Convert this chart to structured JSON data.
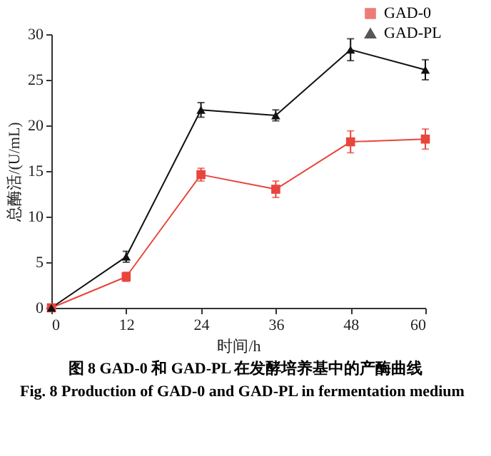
{
  "chart_data": {
    "type": "line",
    "xlabel": "时间/h",
    "ylabel": "总酶活/(U/mL)",
    "x": [
      0,
      12,
      24,
      36,
      48,
      60
    ],
    "xlim": [
      0,
      60
    ],
    "xticks": [
      0,
      12,
      24,
      36,
      48,
      60
    ],
    "ylim": [
      0,
      30
    ],
    "yticks": [
      0,
      5,
      10,
      15,
      20,
      25,
      30
    ],
    "grid": false,
    "legend": "top right",
    "series": [
      {
        "name": "GAD-0",
        "color": "#e8453c",
        "marker": "square",
        "values": [
          0,
          3.4,
          14.6,
          13.0,
          18.2,
          18.5
        ],
        "errors": [
          null,
          0.5,
          0.7,
          0.9,
          1.2,
          1.1
        ]
      },
      {
        "name": "GAD-PL",
        "color": "#111111",
        "marker": "triangle",
        "values": [
          0,
          5.6,
          21.7,
          21.1,
          28.3,
          26.1
        ],
        "errors": [
          null,
          0.6,
          0.8,
          0.6,
          1.2,
          1.1
        ]
      }
    ],
    "annotations": [
      "图 8  GAD-0 和 GAD-PL 在发酵培养基中的产酶曲线",
      "Fig. 8  Production of GAD-0 and GAD-PL in fermentation medium"
    ]
  }
}
